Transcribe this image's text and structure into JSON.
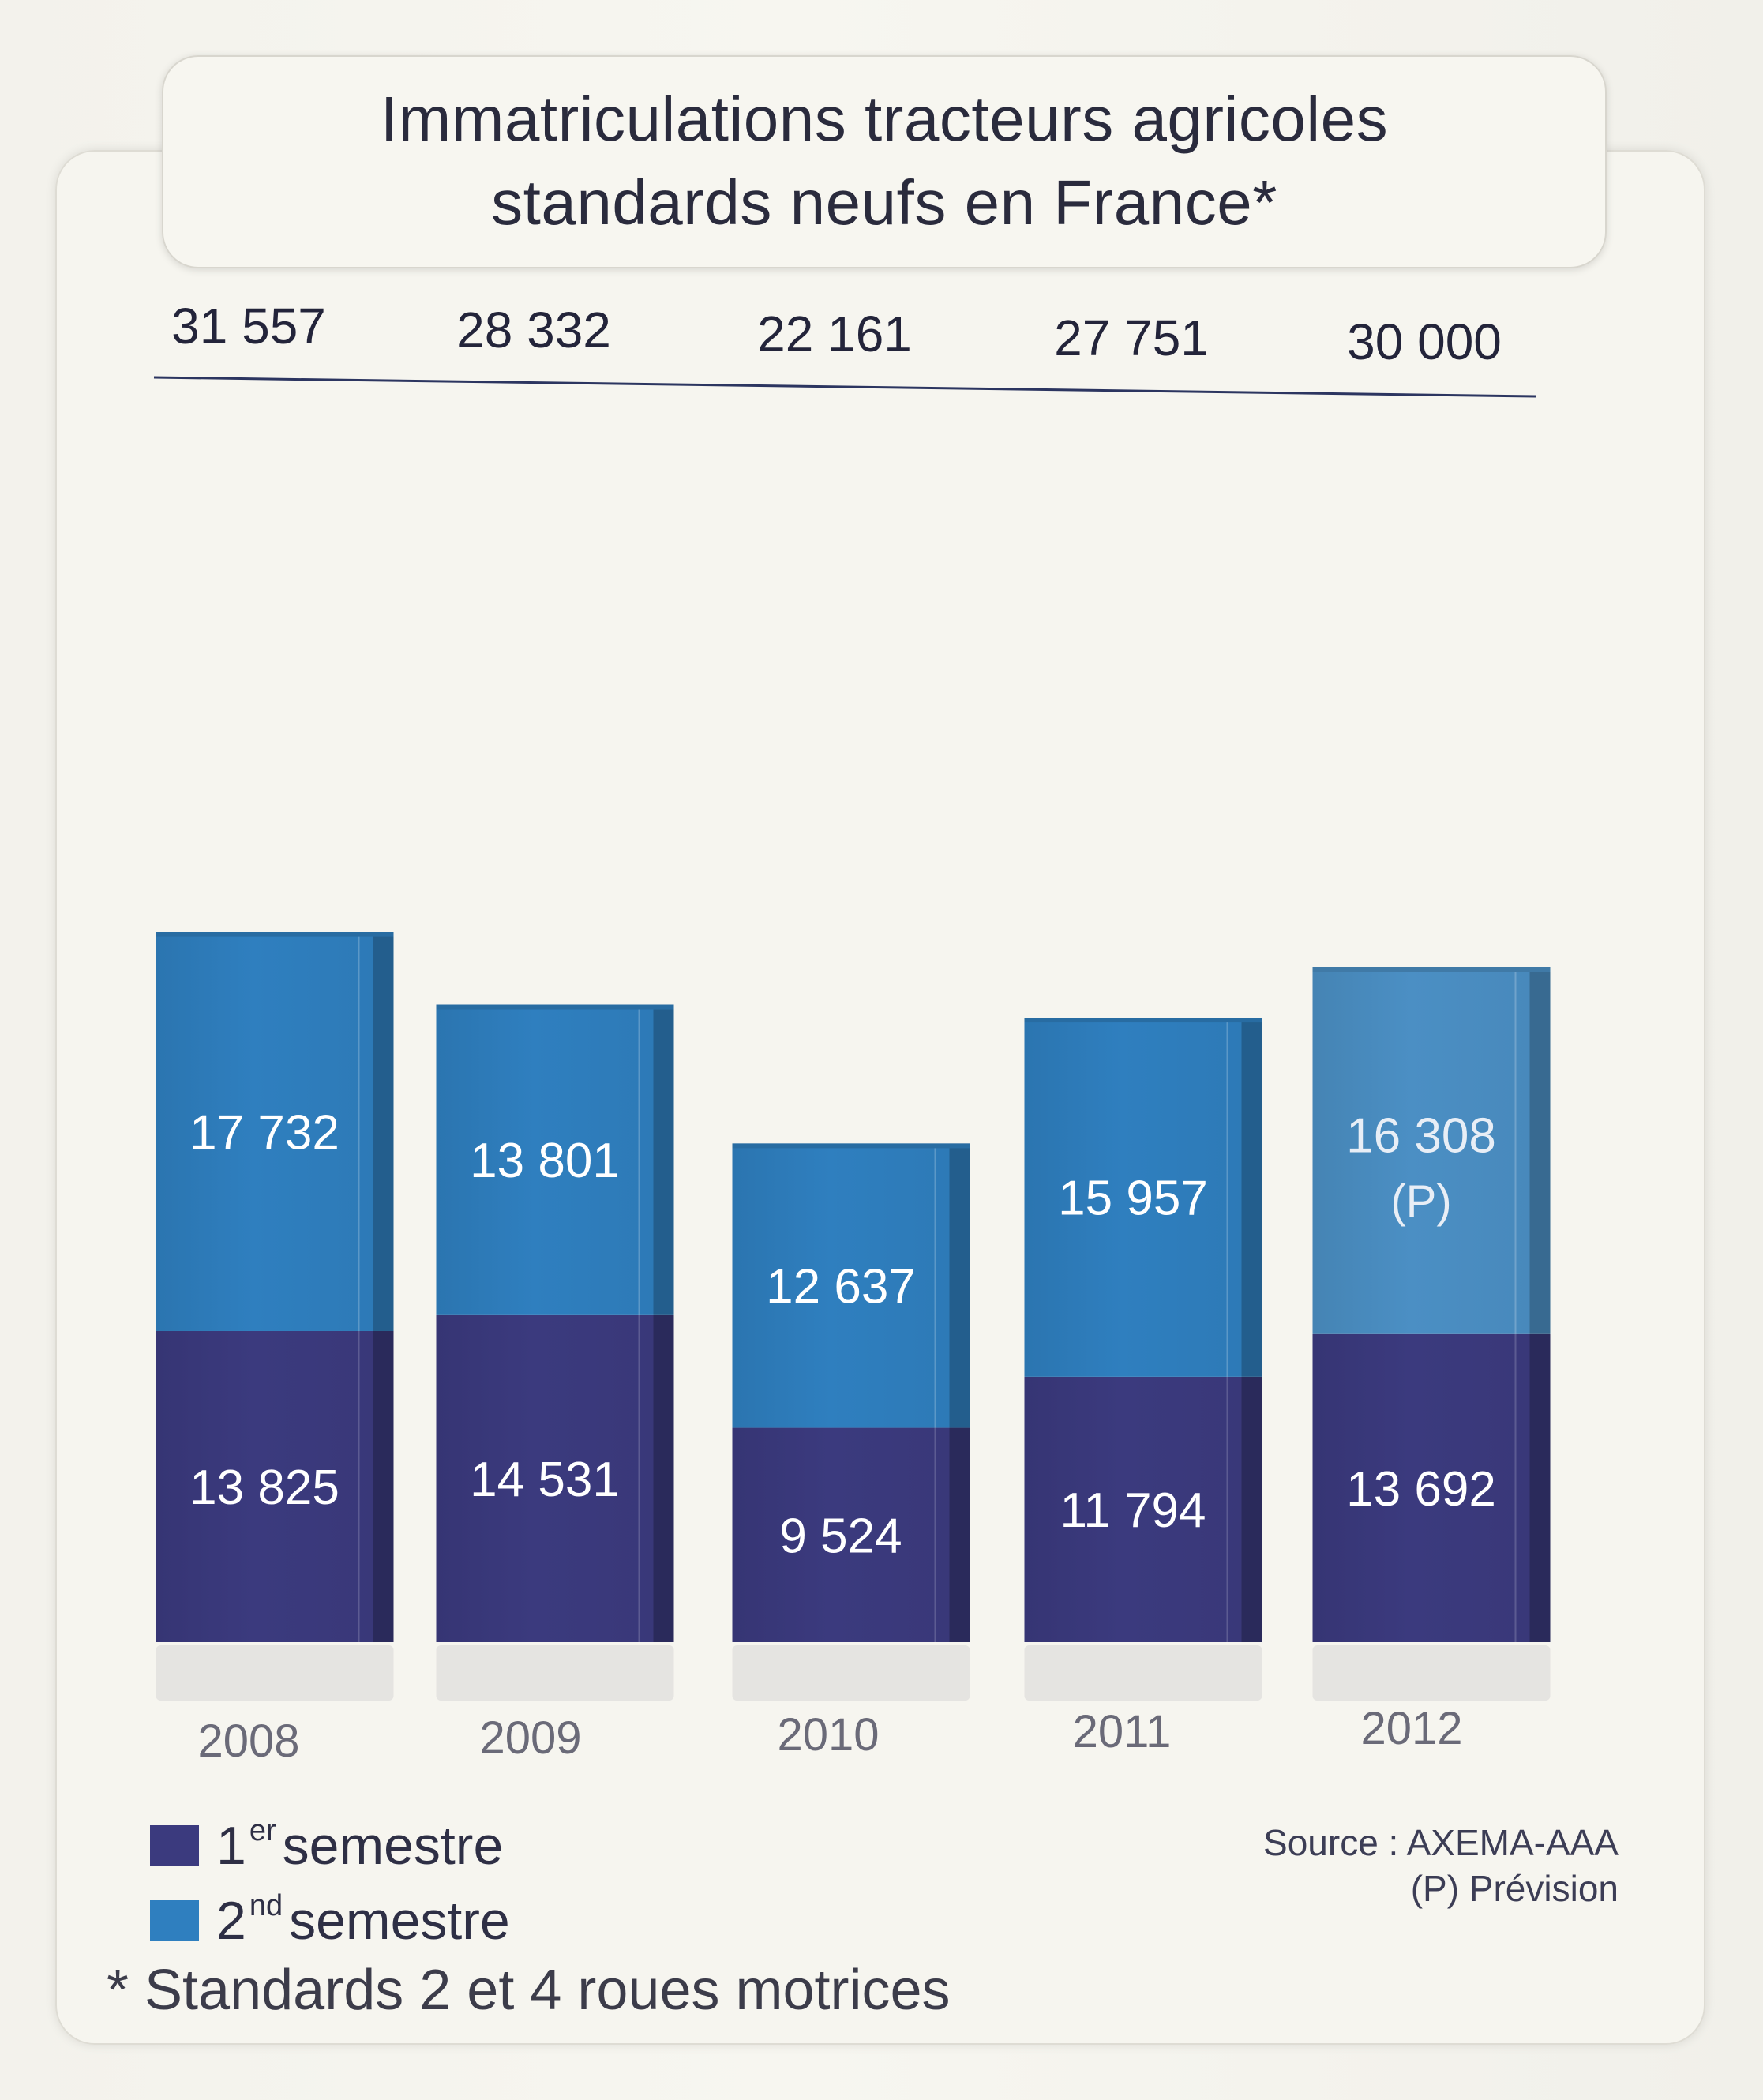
{
  "title": [
    "Immatriculations tracteurs agricoles",
    "standards neufs en France*"
  ],
  "legend": {
    "s1": {
      "num": "1",
      "sup": "er",
      "text": "semestre"
    },
    "s2": {
      "num": "2",
      "sup": "nd",
      "text": "semestre"
    }
  },
  "footnote": "* Standards 2 et 4 roues motrices",
  "source": "Source : AXEMA-AAA",
  "prevision": "(P) Prévision",
  "colors": {
    "s1": "#3b3a7e",
    "s2": "#2f7fbf",
    "s2_forecast": "#4b8fc4"
  },
  "chart_data": {
    "type": "bar",
    "stacked": true,
    "categories": [
      "2008",
      "2009",
      "2010",
      "2011",
      "2012"
    ],
    "totals": [
      "31 557",
      "28 332",
      "22 161",
      "27 751",
      "30 000"
    ],
    "series": [
      {
        "name": "1er semestre",
        "values": [
          13825,
          14531,
          9524,
          11794,
          13692
        ],
        "labels": [
          "13 825",
          "14 531",
          "9 524",
          "11 794",
          "13 692"
        ]
      },
      {
        "name": "2nd semestre",
        "values": [
          17732,
          13801,
          12637,
          15957,
          16308
        ],
        "labels": [
          "17 732",
          "13 801",
          "12 637",
          "15 957",
          "16 308"
        ],
        "forecast_note": [
          "",
          "",
          "",
          "",
          "(P)"
        ]
      }
    ]
  }
}
